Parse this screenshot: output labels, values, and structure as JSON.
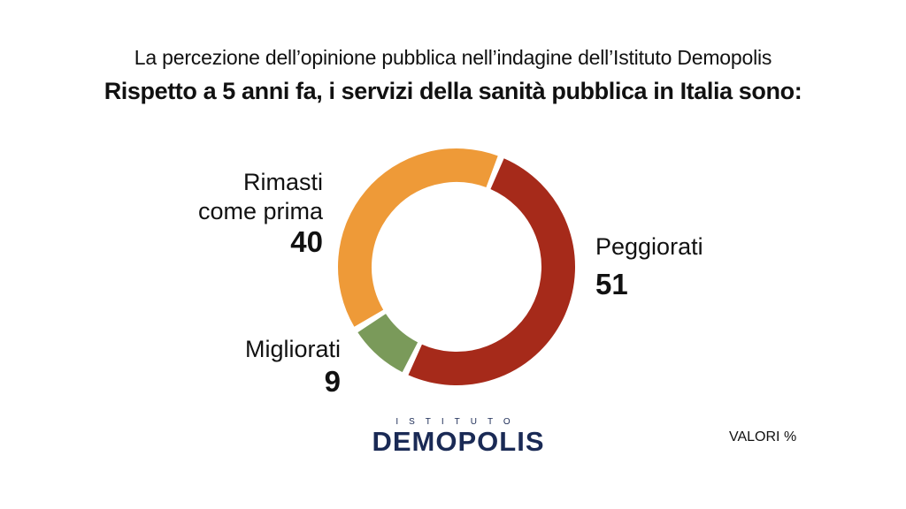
{
  "header": {
    "subtitle": "La percezione dell’opinione pubblica nell’indagine dell’Istituto Demopolis",
    "title": "Rispetto a 5 anni fa, i servizi della sanità pubblica in Italia sono:"
  },
  "chart_data": {
    "type": "pie",
    "variant": "donut",
    "slices": [
      {
        "label": "Peggiorati",
        "value": 51,
        "color": "#a62a1a"
      },
      {
        "label": "Migliorati",
        "value": 9,
        "color": "#7a9a5a"
      },
      {
        "label": "Rimasti come prima",
        "value": 40,
        "color": "#ee9a38"
      }
    ]
  },
  "labels": {
    "peggiorati": "Peggiorati",
    "peggiorati_value": "51",
    "migliorati": "Migliorati",
    "migliorati_value": "9",
    "rimasti_line1": "Rimasti",
    "rimasti_line2": "come prima",
    "rimasti_value": "40"
  },
  "logo": {
    "top_text": "ISTITUTO",
    "main_text": "DEMOPOLIS",
    "color": "#1a2a55"
  },
  "footnote": "VALORI %"
}
